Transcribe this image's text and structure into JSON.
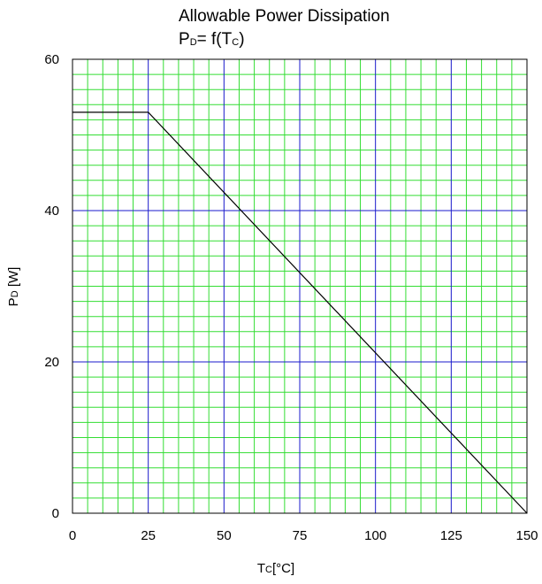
{
  "chart_data": {
    "type": "line",
    "title": {
      "line1": "Allowable Power Dissipation",
      "line2_main": "P",
      "line2_sub": "D",
      "line2_eq": "= f(T",
      "line2_sub2": "C",
      "line2_end": ")"
    },
    "xlabel": {
      "main": "T",
      "sub": "C",
      "unit": "[°C]"
    },
    "ylabel": {
      "main": "P",
      "sub": "D",
      "unit": " [W]"
    },
    "xlim": [
      0,
      150
    ],
    "ylim": [
      0,
      60
    ],
    "x_ticks": [
      "0",
      "25",
      "50",
      "75",
      "100",
      "125",
      "150"
    ],
    "y_ticks": [
      "0",
      "20",
      "40",
      "60"
    ],
    "grid": true,
    "colors": {
      "minor_grid": "#33dd33",
      "major_grid": "#1a1acc",
      "line": "#000000",
      "frame": "#000000"
    },
    "series": [
      {
        "x": [
          0,
          25,
          150
        ],
        "y": [
          53,
          53,
          0
        ]
      }
    ]
  }
}
